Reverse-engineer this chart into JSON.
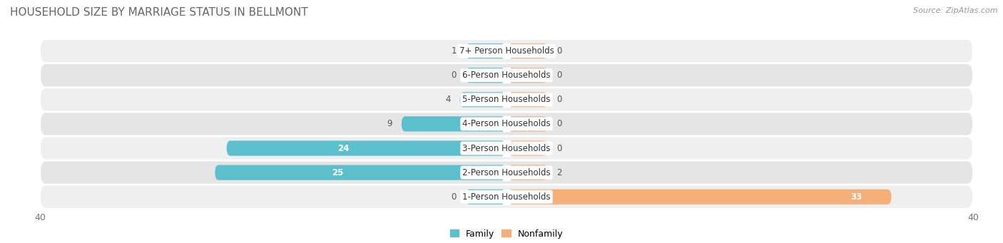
{
  "title": "HOUSEHOLD SIZE BY MARRIAGE STATUS IN BELLMONT",
  "source": "Source: ZipAtlas.com",
  "categories": [
    "7+ Person Households",
    "6-Person Households",
    "5-Person Households",
    "4-Person Households",
    "3-Person Households",
    "2-Person Households",
    "1-Person Households"
  ],
  "family_values": [
    1,
    0,
    4,
    9,
    24,
    25,
    0
  ],
  "nonfamily_values": [
    0,
    0,
    0,
    0,
    0,
    2,
    33
  ],
  "family_color": "#5bbfcc",
  "nonfamily_color": "#f5b07a",
  "xlim": [
    -40,
    40
  ],
  "bar_height": 0.62,
  "min_stub": 3.5,
  "row_bg_colors": [
    "#efefef",
    "#e5e5e5"
  ],
  "label_fontsize": 8.5,
  "value_fontsize": 8.5,
  "title_fontsize": 11,
  "source_fontsize": 8
}
